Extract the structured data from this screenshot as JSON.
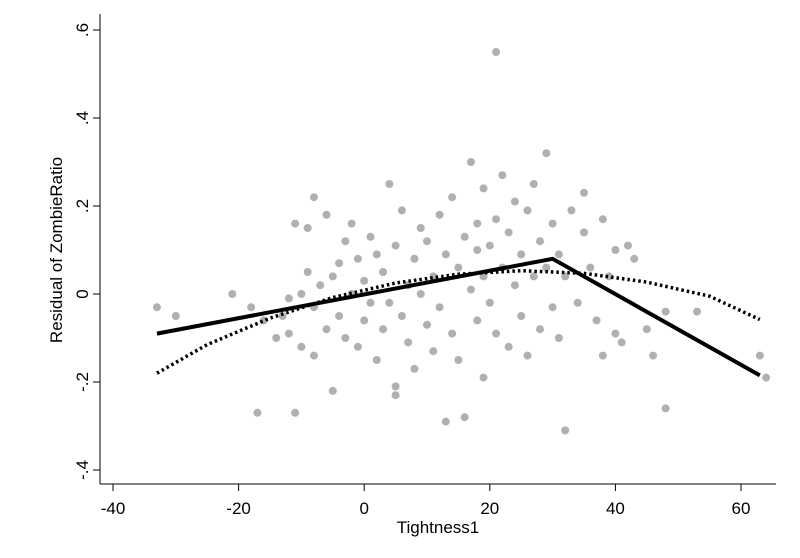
{
  "chart_data": {
    "type": "scatter",
    "xlabel": "Tightness1",
    "ylabel": "Residual of ZombieRatio",
    "xlim": [
      -42,
      65
    ],
    "ylim": [
      -0.42,
      0.62
    ],
    "x_ticks": [
      {
        "value": -40,
        "label": "-40"
      },
      {
        "value": -20,
        "label": "-20"
      },
      {
        "value": 0,
        "label": "0"
      },
      {
        "value": 20,
        "label": "20"
      },
      {
        "value": 40,
        "label": "40"
      },
      {
        "value": 60,
        "label": "60"
      }
    ],
    "y_ticks": [
      {
        "value": -0.4,
        "label": "-.4"
      },
      {
        "value": -0.2,
        "label": "-.2"
      },
      {
        "value": 0,
        "label": "0"
      },
      {
        "value": 0.2,
        "label": ".2"
      },
      {
        "value": 0.4,
        "label": ".4"
      },
      {
        "value": 0.6,
        "label": ".6"
      }
    ],
    "grid": false,
    "legend": "none",
    "colors": {
      "points": "#b0b0b0",
      "lines": "#000000"
    },
    "series": [
      {
        "kind": "scatter",
        "points": [
          [
            -33,
            -0.03
          ],
          [
            -30,
            -0.05
          ],
          [
            -21,
            0.0
          ],
          [
            -18,
            -0.03
          ],
          [
            -17,
            -0.27
          ],
          [
            -16,
            -0.06
          ],
          [
            -14,
            -0.1
          ],
          [
            -13,
            -0.05
          ],
          [
            -12,
            -0.01
          ],
          [
            -12,
            -0.09
          ],
          [
            -11,
            0.16
          ],
          [
            -11,
            -0.27
          ],
          [
            -10,
            0.0
          ],
          [
            -10,
            -0.12
          ],
          [
            -9,
            0.15
          ],
          [
            -9,
            0.05
          ],
          [
            -8,
            -0.03
          ],
          [
            -8,
            -0.14
          ],
          [
            -8,
            0.22
          ],
          [
            -7,
            0.02
          ],
          [
            -6,
            -0.08
          ],
          [
            -6,
            0.18
          ],
          [
            -5,
            -0.22
          ],
          [
            -5,
            0.04
          ],
          [
            -4,
            0.07
          ],
          [
            -4,
            -0.05
          ],
          [
            -3,
            0.12
          ],
          [
            -3,
            -0.1
          ],
          [
            -2,
            0.16
          ],
          [
            -2,
            0.0
          ],
          [
            -1,
            -0.12
          ],
          [
            -1,
            0.08
          ],
          [
            0,
            0.03
          ],
          [
            0,
            -0.06
          ],
          [
            1,
            0.13
          ],
          [
            1,
            -0.02
          ],
          [
            2,
            0.09
          ],
          [
            2,
            -0.15
          ],
          [
            3,
            0.05
          ],
          [
            3,
            -0.08
          ],
          [
            4,
            0.25
          ],
          [
            4,
            -0.02
          ],
          [
            5,
            -0.21
          ],
          [
            5,
            0.11
          ],
          [
            5,
            -0.23
          ],
          [
            6,
            0.19
          ],
          [
            6,
            -0.05
          ],
          [
            7,
            0.02
          ],
          [
            7,
            -0.11
          ],
          [
            8,
            0.08
          ],
          [
            8,
            -0.17
          ],
          [
            9,
            0.15
          ],
          [
            9,
            0.0
          ],
          [
            10,
            -0.07
          ],
          [
            10,
            0.12
          ],
          [
            11,
            -0.13
          ],
          [
            11,
            0.04
          ],
          [
            12,
            0.18
          ],
          [
            12,
            -0.03
          ],
          [
            13,
            0.09
          ],
          [
            13,
            -0.29
          ],
          [
            14,
            -0.09
          ],
          [
            14,
            0.22
          ],
          [
            15,
            0.06
          ],
          [
            15,
            -0.15
          ],
          [
            16,
            0.13
          ],
          [
            16,
            -0.28
          ],
          [
            17,
            0.01
          ],
          [
            17,
            0.3
          ],
          [
            18,
            0.16
          ],
          [
            18,
            -0.06
          ],
          [
            18,
            0.1
          ],
          [
            19,
            0.24
          ],
          [
            19,
            -0.19
          ],
          [
            19,
            0.04
          ],
          [
            20,
            0.11
          ],
          [
            20,
            -0.02
          ],
          [
            21,
            0.55
          ],
          [
            21,
            0.17
          ],
          [
            21,
            -0.09
          ],
          [
            22,
            0.06
          ],
          [
            22,
            0.27
          ],
          [
            23,
            -0.12
          ],
          [
            23,
            0.14
          ],
          [
            24,
            0.02
          ],
          [
            24,
            0.21
          ],
          [
            25,
            -0.05
          ],
          [
            25,
            0.09
          ],
          [
            26,
            0.19
          ],
          [
            26,
            -0.14
          ],
          [
            27,
            0.04
          ],
          [
            27,
            0.25
          ],
          [
            28,
            -0.08
          ],
          [
            28,
            0.12
          ],
          [
            29,
            0.32
          ],
          [
            29,
            0.06
          ],
          [
            30,
            0.16
          ],
          [
            30,
            -0.03
          ],
          [
            31,
            0.09
          ],
          [
            31,
            -0.1
          ],
          [
            32,
            -0.31
          ],
          [
            32,
            0.04
          ],
          [
            33,
            0.19
          ],
          [
            34,
            -0.02
          ],
          [
            35,
            0.14
          ],
          [
            35,
            0.23
          ],
          [
            36,
            0.06
          ],
          [
            37,
            -0.06
          ],
          [
            38,
            0.17
          ],
          [
            38,
            -0.14
          ],
          [
            39,
            0.04
          ],
          [
            40,
            0.1
          ],
          [
            40,
            -0.09
          ],
          [
            41,
            -0.11
          ],
          [
            42,
            0.11
          ],
          [
            43,
            0.08
          ],
          [
            45,
            -0.08
          ],
          [
            46,
            -0.14
          ],
          [
            48,
            -0.26
          ],
          [
            48,
            -0.04
          ],
          [
            53,
            -0.04
          ],
          [
            63,
            -0.14
          ],
          [
            64,
            -0.19
          ]
        ]
      },
      {
        "kind": "line",
        "style": "solid",
        "points": [
          [
            -33,
            -0.09
          ],
          [
            30,
            0.08
          ],
          [
            63,
            -0.185
          ]
        ]
      },
      {
        "kind": "line",
        "style": "dotted",
        "points": [
          [
            -33,
            -0.18
          ],
          [
            -25,
            -0.115
          ],
          [
            -15,
            -0.055
          ],
          [
            -5,
            -0.008
          ],
          [
            5,
            0.025
          ],
          [
            15,
            0.045
          ],
          [
            25,
            0.053
          ],
          [
            35,
            0.047
          ],
          [
            45,
            0.027
          ],
          [
            55,
            -0.005
          ],
          [
            63,
            -0.058
          ]
        ]
      }
    ]
  }
}
